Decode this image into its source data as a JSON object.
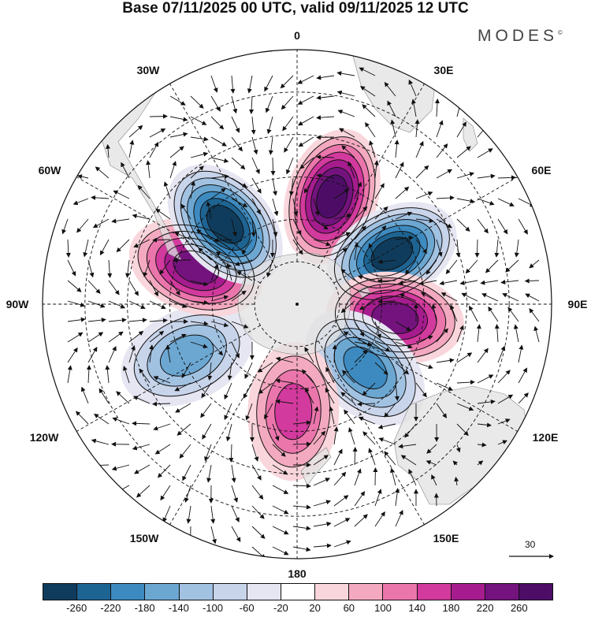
{
  "title": "Base 07/11/2025 00 UTC, valid 09/11/2025 12 UTC",
  "brand": "MODES",
  "brand_mark": "©",
  "meridian_labels": [
    "0",
    "30E",
    "60E",
    "90E",
    "120E",
    "150E",
    "180",
    "150W",
    "120W",
    "90W",
    "60W",
    "30W"
  ],
  "vector_scale_label": "30",
  "colorbar": {
    "tick_labels": [
      "-260",
      "-220",
      "-180",
      "-140",
      "-100",
      "-60",
      "-20",
      "20",
      "60",
      "100",
      "140",
      "180",
      "220",
      "260"
    ],
    "colors": [
      "#0f3c5c",
      "#1e6493",
      "#3d8ac0",
      "#6ca7d2",
      "#a2c2e2",
      "#c8d4ea",
      "#e6e6f2",
      "#ffffff",
      "#f9d6dc",
      "#f3aac0",
      "#eb76ac",
      "#d33a9d",
      "#a61c8e",
      "#74137e",
      "#4d0d67"
    ]
  },
  "anomaly_centers": [
    {
      "name": "dipole-0-high",
      "lon": 18,
      "lat": -50,
      "value": 260
    },
    {
      "name": "dipole-60e-low",
      "lon": 62,
      "lat": -52,
      "value": -260
    },
    {
      "name": "dipole-95e-high",
      "lon": 98,
      "lat": -55,
      "value": 240
    },
    {
      "name": "dipole-135e-low",
      "lon": 133,
      "lat": -57,
      "value": -180
    },
    {
      "name": "dipole-180-high",
      "lon": 182,
      "lat": -52,
      "value": 140
    },
    {
      "name": "dipole-115w-low",
      "lon": 245,
      "lat": -47,
      "value": -140
    },
    {
      "name": "dipole-75w-high",
      "lon": 290,
      "lat": -52,
      "value": 240
    },
    {
      "name": "dipole-45w-low",
      "lon": 318,
      "lat": -52,
      "value": -260
    }
  ]
}
